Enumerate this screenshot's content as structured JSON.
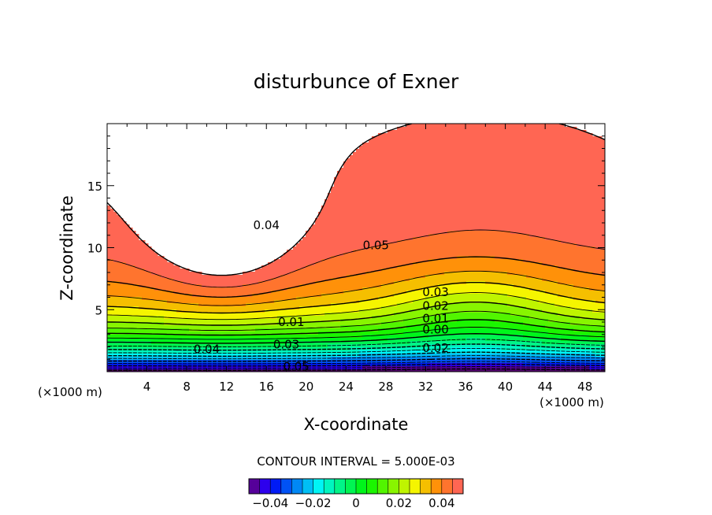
{
  "chart_data": {
    "type": "contour",
    "title": "disturbunce of Exner",
    "xlabel": "X-coordinate",
    "ylabel": "Z-coordinate",
    "x_unit": "(×1000 m)",
    "y_unit": "(×1000 m)",
    "xlim": [
      0,
      50
    ],
    "ylim": [
      0,
      20
    ],
    "x_ticks": [
      "4",
      "8",
      "12",
      "16",
      "20",
      "24",
      "28",
      "32",
      "36",
      "40",
      "44",
      "48"
    ],
    "y_ticks": [
      "5",
      "10",
      "15"
    ],
    "contour_interval_text": "CONTOUR INTERVAL = 5.000E-03",
    "contour_interval": 0.005,
    "levels_min": -0.05,
    "levels_max": 0.05,
    "negative_contours": "dashed",
    "contour_labels": [
      {
        "x": 16,
        "z": 11.8,
        "text": "0.04"
      },
      {
        "x": 27,
        "z": 10.2,
        "text": "0.05"
      },
      {
        "x": 33,
        "z": 6.4,
        "text": "0.03"
      },
      {
        "x": 33,
        "z": 5.3,
        "text": "0.02"
      },
      {
        "x": 33,
        "z": 4.3,
        "text": "0.01"
      },
      {
        "x": 33,
        "z": 3.4,
        "text": "0.00"
      },
      {
        "x": 33,
        "z": 1.9,
        "text": "0.02"
      },
      {
        "x": 18.5,
        "z": 4.0,
        "text": "0.01"
      },
      {
        "x": 18,
        "z": 2.2,
        "text": "0.03"
      },
      {
        "x": 10,
        "z": 1.8,
        "text": "0.04"
      },
      {
        "x": 19,
        "z": 0.4,
        "text": "0.05"
      }
    ],
    "colorbar": {
      "ticks": [
        "−0.04",
        "−0.02",
        "0",
        "0.02",
        "0.04"
      ],
      "tick_values": [
        -0.04,
        -0.02,
        0,
        0.02,
        0.04
      ],
      "range": [
        -0.05,
        0.05
      ]
    }
  }
}
